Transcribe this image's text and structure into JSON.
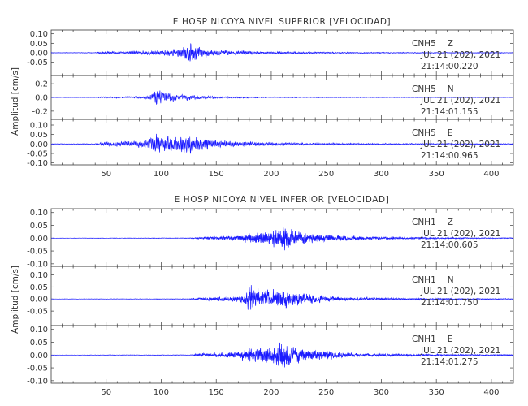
{
  "chart_data": [
    {
      "type": "line",
      "title": "E HOSP NICOYA NIVEL SUPERIOR [VELOCIDAD]",
      "ylabel": "Amplitud [cm/s]",
      "xlim": [
        0,
        420
      ],
      "x_ticks": [
        50,
        100,
        150,
        200,
        250,
        300,
        350,
        400
      ],
      "color": "#1a1aff",
      "panels": [
        {
          "station": "CNH5",
          "component": "Z",
          "date": "JUL 21 (202), 2021",
          "time": "21:14:00.220",
          "ylim": [
            -0.12,
            0.12
          ],
          "y_ticks": [
            "0.10",
            "0.05",
            "0.00",
            "-0.05"
          ],
          "env": [
            [
              0,
              0.002
            ],
            [
              40,
              0.003
            ],
            [
              47,
              0.012
            ],
            [
              55,
              0.01
            ],
            [
              70,
              0.012
            ],
            [
              80,
              0.016
            ],
            [
              90,
              0.018
            ],
            [
              100,
              0.024
            ],
            [
              110,
              0.03
            ],
            [
              118,
              0.04
            ],
            [
              124,
              0.07
            ],
            [
              126,
              0.11
            ],
            [
              128,
              0.085
            ],
            [
              133,
              0.06
            ],
            [
              140,
              0.035
            ],
            [
              150,
              0.025
            ],
            [
              165,
              0.018
            ],
            [
              190,
              0.012
            ],
            [
              230,
              0.008
            ],
            [
              280,
              0.005
            ],
            [
              340,
              0.004
            ],
            [
              420,
              0.003
            ]
          ],
          "seed": 11,
          "freq": 0.9
        },
        {
          "station": "CNH5",
          "component": "N",
          "date": "JUL 21 (202), 2021",
          "time": "21:14:01.155",
          "ylim": [
            -0.32,
            0.32
          ],
          "y_ticks": [
            "0.2",
            "0.0",
            "-0.2"
          ],
          "env": [
            [
              0,
              0.004
            ],
            [
              40,
              0.005
            ],
            [
              47,
              0.02
            ],
            [
              55,
              0.015
            ],
            [
              70,
              0.02
            ],
            [
              80,
              0.025
            ],
            [
              88,
              0.04
            ],
            [
              94,
              0.12
            ],
            [
              96,
              0.3
            ],
            [
              99,
              0.2
            ],
            [
              103,
              0.12
            ],
            [
              110,
              0.09
            ],
            [
              118,
              0.06
            ],
            [
              125,
              0.08
            ],
            [
              130,
              0.05
            ],
            [
              140,
              0.035
            ],
            [
              160,
              0.02
            ],
            [
              200,
              0.012
            ],
            [
              260,
              0.008
            ],
            [
              420,
              0.005
            ]
          ],
          "seed": 23,
          "freq": 0.8
        },
        {
          "station": "CNH5",
          "component": "E",
          "date": "JUL 21 (202), 2021",
          "time": "21:14:00.965",
          "ylim": [
            -0.11,
            0.13
          ],
          "y_ticks": [
            "0.10",
            "0.05",
            "0.00",
            "-0.05",
            "-0.10"
          ],
          "env": [
            [
              0,
              0.003
            ],
            [
              40,
              0.004
            ],
            [
              47,
              0.015
            ],
            [
              60,
              0.02
            ],
            [
              75,
              0.025
            ],
            [
              90,
              0.045
            ],
            [
              95,
              0.1
            ],
            [
              100,
              0.07
            ],
            [
              108,
              0.06
            ],
            [
              115,
              0.07
            ],
            [
              125,
              0.085
            ],
            [
              132,
              0.06
            ],
            [
              140,
              0.05
            ],
            [
              150,
              0.035
            ],
            [
              165,
              0.025
            ],
            [
              190,
              0.015
            ],
            [
              230,
              0.01
            ],
            [
              300,
              0.006
            ],
            [
              420,
              0.004
            ]
          ],
          "seed": 37,
          "freq": 0.85
        }
      ]
    },
    {
      "type": "line",
      "title": "E HOSP NICOYA NIVEL INFERIOR [VELOCIDAD]",
      "ylabel": "Amplitud [cm/s]",
      "xlim": [
        0,
        420
      ],
      "x_ticks": [
        50,
        100,
        150,
        200,
        250,
        300,
        350,
        400
      ],
      "color": "#1a1aff",
      "panels": [
        {
          "station": "CNH1",
          "component": "Z",
          "date": "JUL 21 (202), 2021",
          "time": "21:14:00.605",
          "ylim": [
            -0.11,
            0.115
          ],
          "y_ticks": [
            "0.10",
            "0.05",
            "0.00",
            "-0.05",
            "-0.10"
          ],
          "env": [
            [
              0,
              0.001
            ],
            [
              125,
              0.002
            ],
            [
              135,
              0.008
            ],
            [
              150,
              0.012
            ],
            [
              170,
              0.018
            ],
            [
              180,
              0.035
            ],
            [
              190,
              0.04
            ],
            [
              200,
              0.05
            ],
            [
              208,
              0.07
            ],
            [
              212,
              0.105
            ],
            [
              215,
              0.08
            ],
            [
              220,
              0.05
            ],
            [
              230,
              0.04
            ],
            [
              250,
              0.025
            ],
            [
              280,
              0.012
            ],
            [
              320,
              0.007
            ],
            [
              380,
              0.004
            ],
            [
              420,
              0.003
            ]
          ],
          "seed": 51,
          "freq": 1.2
        },
        {
          "station": "CNH1",
          "component": "N",
          "date": "JUL 21 (202), 2021",
          "time": "21:14:01.750",
          "ylim": [
            -0.11,
            0.135
          ],
          "y_ticks": [
            "0.10",
            "0.05",
            "0.00",
            "-0.05"
          ],
          "env": [
            [
              0,
              0.001
            ],
            [
              125,
              0.002
            ],
            [
              135,
              0.01
            ],
            [
              150,
              0.015
            ],
            [
              170,
              0.02
            ],
            [
              178,
              0.06
            ],
            [
              182,
              0.12
            ],
            [
              186,
              0.08
            ],
            [
              195,
              0.06
            ],
            [
              205,
              0.07
            ],
            [
              215,
              0.06
            ],
            [
              225,
              0.045
            ],
            [
              240,
              0.03
            ],
            [
              260,
              0.015
            ],
            [
              300,
              0.008
            ],
            [
              360,
              0.005
            ],
            [
              420,
              0.003
            ]
          ],
          "seed": 67,
          "freq": 1.15
        },
        {
          "station": "CNH1",
          "component": "E",
          "date": "JUL 21 (202), 2021",
          "time": "21:14:01.275",
          "ylim": [
            -0.11,
            0.115
          ],
          "y_ticks": [
            "0.10",
            "0.05",
            "0.00",
            "-0.05",
            "-0.10"
          ],
          "env": [
            [
              0,
              0.001
            ],
            [
              125,
              0.002
            ],
            [
              135,
              0.01
            ],
            [
              150,
              0.015
            ],
            [
              170,
              0.025
            ],
            [
              180,
              0.045
            ],
            [
              190,
              0.05
            ],
            [
              200,
              0.06
            ],
            [
              208,
              0.085
            ],
            [
              212,
              0.1
            ],
            [
              216,
              0.07
            ],
            [
              222,
              0.06
            ],
            [
              235,
              0.04
            ],
            [
              255,
              0.025
            ],
            [
              280,
              0.012
            ],
            [
              330,
              0.007
            ],
            [
              420,
              0.004
            ]
          ],
          "seed": 83,
          "freq": 1.2
        }
      ]
    }
  ]
}
